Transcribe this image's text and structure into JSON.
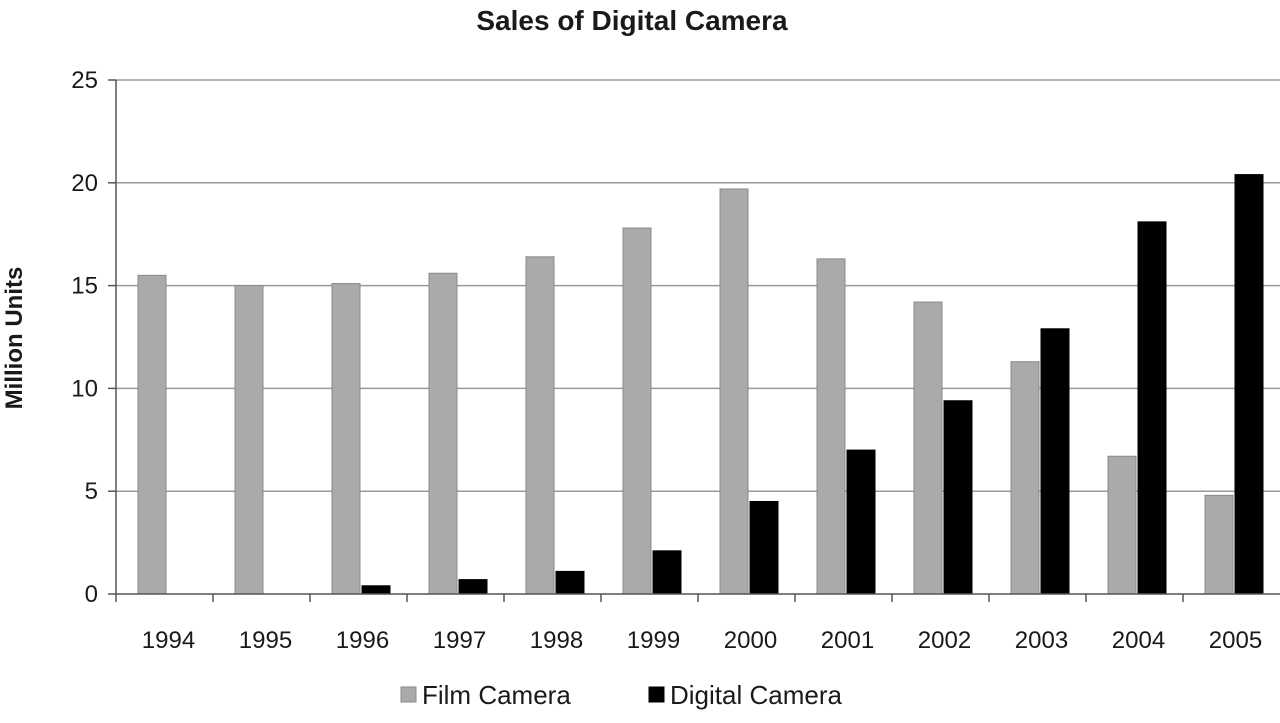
{
  "chart_data": {
    "type": "bar",
    "title": "Sales of Digital Camera",
    "xlabel": "",
    "ylabel": "Million Units",
    "ylim": [
      0,
      25
    ],
    "yticks": [
      0,
      5,
      10,
      15,
      20,
      25
    ],
    "grid": true,
    "legend_position": "bottom",
    "categories": [
      "1994",
      "1995",
      "1996",
      "1997",
      "1998",
      "1999",
      "2000",
      "2001",
      "2002",
      "2003",
      "2004",
      "2005"
    ],
    "series": [
      {
        "name": "Film Camera",
        "color": "#aaaaaa",
        "values": [
          15.5,
          15.0,
          15.1,
          15.6,
          16.4,
          17.8,
          19.7,
          16.3,
          14.2,
          11.3,
          6.7,
          4.8
        ]
      },
      {
        "name": "Digital Camera",
        "color": "#000000",
        "values": [
          0,
          0,
          0.4,
          0.7,
          1.1,
          2.1,
          4.5,
          7.0,
          9.4,
          12.9,
          18.1,
          20.4
        ]
      }
    ]
  }
}
